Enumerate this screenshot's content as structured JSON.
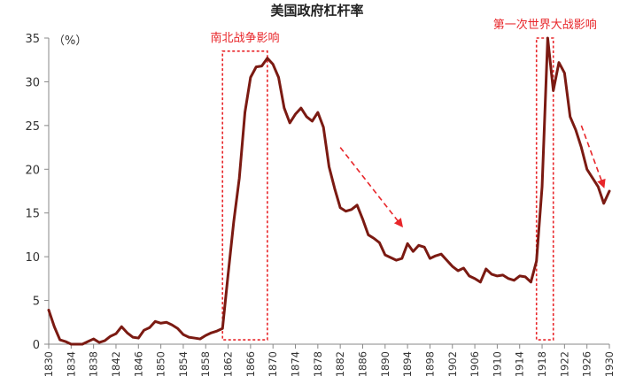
{
  "chart_data": {
    "type": "line",
    "title": "美国政府杠杆率",
    "unit_label": "（%）",
    "ylim": [
      0,
      35
    ],
    "yticks": [
      0,
      5,
      10,
      15,
      20,
      25,
      30,
      35
    ],
    "xlim": [
      1830,
      1930
    ],
    "xticks": [
      1830,
      1834,
      1838,
      1842,
      1846,
      1850,
      1854,
      1858,
      1862,
      1866,
      1870,
      1874,
      1878,
      1882,
      1886,
      1890,
      1894,
      1898,
      1902,
      1906,
      1910,
      1914,
      1918,
      1922,
      1926,
      1930
    ],
    "grid": false,
    "legend": "none",
    "colors": {
      "line": "#7b1a12",
      "annotation": "#e8262a",
      "axis": "#888888"
    },
    "series": [
      {
        "x": [
          1830,
          1831,
          1832,
          1833,
          1834,
          1835,
          1836,
          1837,
          1838,
          1839,
          1840,
          1841,
          1842,
          1843,
          1844,
          1845,
          1846,
          1847,
          1848,
          1849,
          1850,
          1851,
          1852,
          1853,
          1854,
          1855,
          1856,
          1857,
          1858,
          1859,
          1860,
          1861,
          1862,
          1863,
          1864,
          1865,
          1866,
          1867,
          1868,
          1869,
          1870,
          1871,
          1872,
          1873,
          1874,
          1875,
          1876,
          1877,
          1878,
          1879,
          1880,
          1881,
          1882,
          1883,
          1884,
          1885,
          1886,
          1887,
          1888,
          1889,
          1890,
          1891,
          1892,
          1893,
          1894,
          1895,
          1896,
          1897,
          1898,
          1899,
          1900,
          1901,
          1902,
          1903,
          1904,
          1905,
          1906,
          1907,
          1908,
          1909,
          1910,
          1911,
          1912,
          1913,
          1914,
          1915,
          1916,
          1917,
          1918,
          1919,
          1920,
          1921,
          1922,
          1923,
          1924,
          1925,
          1926,
          1927,
          1928,
          1929,
          1930
        ],
        "values": [
          3.9,
          2.0,
          0.5,
          0.3,
          0.0,
          0.0,
          0.0,
          0.3,
          0.6,
          0.2,
          0.4,
          0.9,
          1.2,
          2.0,
          1.3,
          0.8,
          0.7,
          1.6,
          1.9,
          2.6,
          2.4,
          2.5,
          2.2,
          1.8,
          1.1,
          0.8,
          0.7,
          0.6,
          1.0,
          1.3,
          1.5,
          1.8,
          8.0,
          14.0,
          19.0,
          26.5,
          30.5,
          31.7,
          31.8,
          32.7,
          32.0,
          30.5,
          27.0,
          25.3,
          26.3,
          27.0,
          26.0,
          25.5,
          26.5,
          24.8,
          20.3,
          17.8,
          15.6,
          15.2,
          15.4,
          15.9,
          14.3,
          12.5,
          12.1,
          11.6,
          10.2,
          9.9,
          9.6,
          9.8,
          11.5,
          10.6,
          11.3,
          11.1,
          9.8,
          10.1,
          10.3,
          9.6,
          8.9,
          8.4,
          8.7,
          7.8,
          7.5,
          7.1,
          8.6,
          8.0,
          7.8,
          7.9,
          7.5,
          7.3,
          7.8,
          7.7,
          7.1,
          9.5,
          18.0,
          35.0,
          29.0,
          32.2,
          31.0,
          26.0,
          24.5,
          22.5,
          20.0,
          19.0,
          18.0,
          16.1,
          17.5
        ]
      }
    ],
    "annotations": [
      {
        "label": "南北战争影响",
        "x_range": [
          1861,
          1869
        ],
        "y_range": [
          0.5,
          33.5
        ]
      },
      {
        "label": "第一次世界大战影响",
        "x_range": [
          1917,
          1920
        ],
        "y_range": [
          0.5,
          35.0
        ]
      }
    ],
    "trend_arrows": [
      {
        "from": [
          1882,
          22.5
        ],
        "to": [
          1893,
          13.5
        ]
      },
      {
        "from": [
          1925,
          25.0
        ],
        "to": [
          1929,
          18.0
        ]
      }
    ]
  }
}
